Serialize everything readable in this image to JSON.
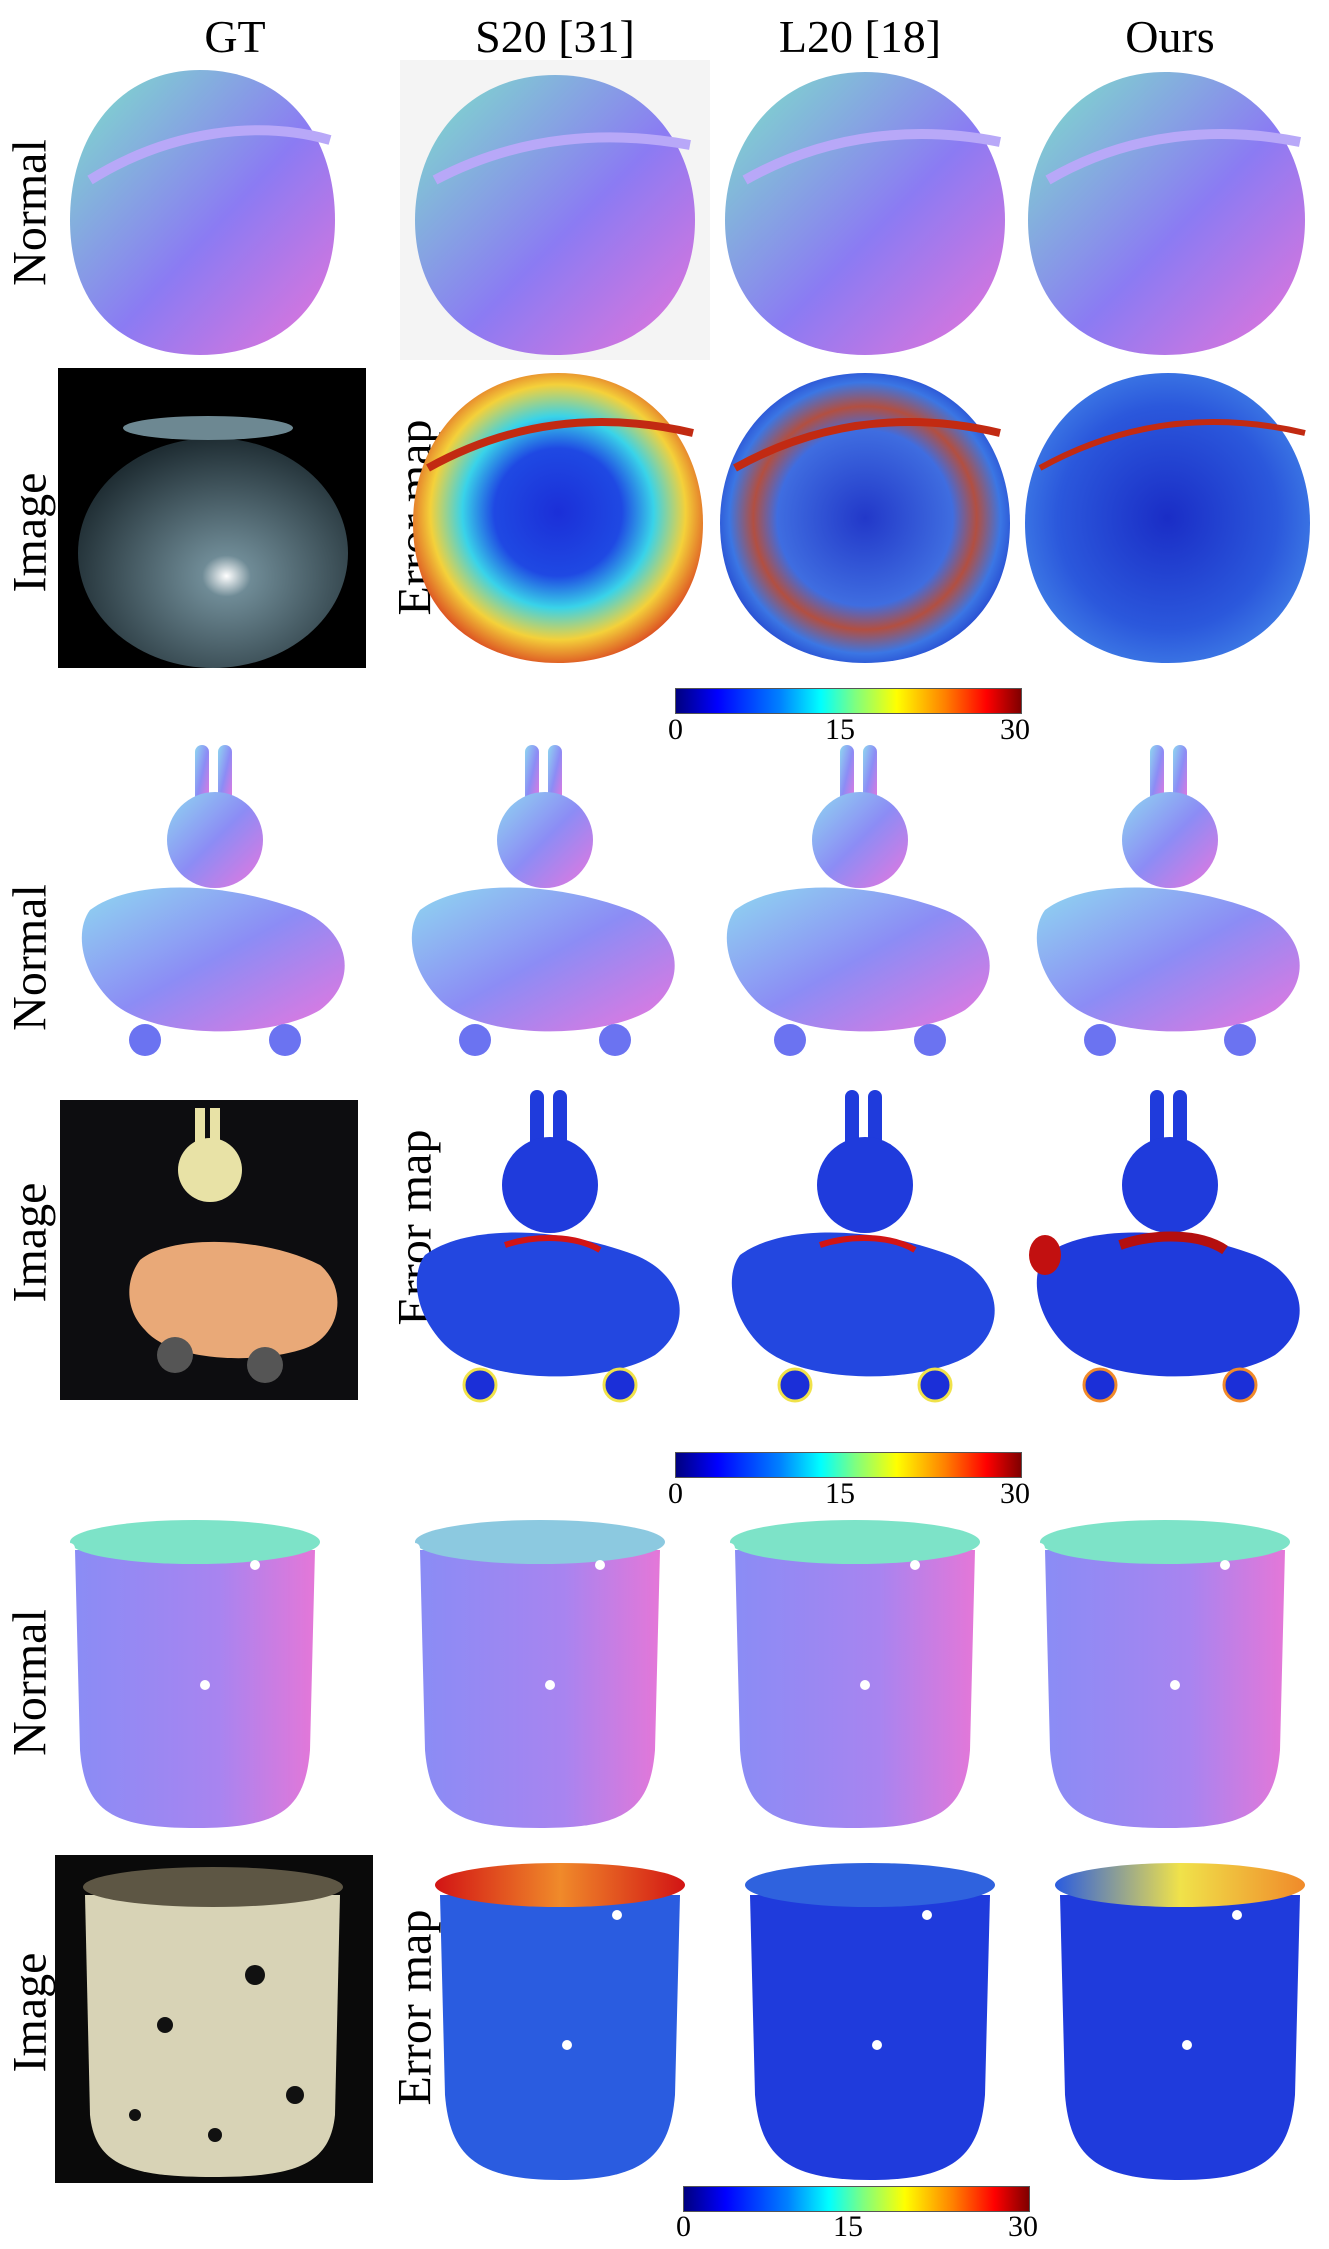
{
  "columns": [
    "GT",
    "S20 [31]",
    "L20 [18]",
    "Ours"
  ],
  "row_labels": {
    "normal": "Normal",
    "image": "Image",
    "error": "Error map"
  },
  "colorbar": {
    "ticks": [
      "0",
      "15",
      "30"
    ],
    "colormap": "jet"
  },
  "colors": {
    "normal_a": "#7de3c8",
    "normal_b": "#8b7bf3",
    "normal_c": "#e874d9",
    "err_low": "#1b2fd8",
    "err_high": "#d21414"
  }
}
